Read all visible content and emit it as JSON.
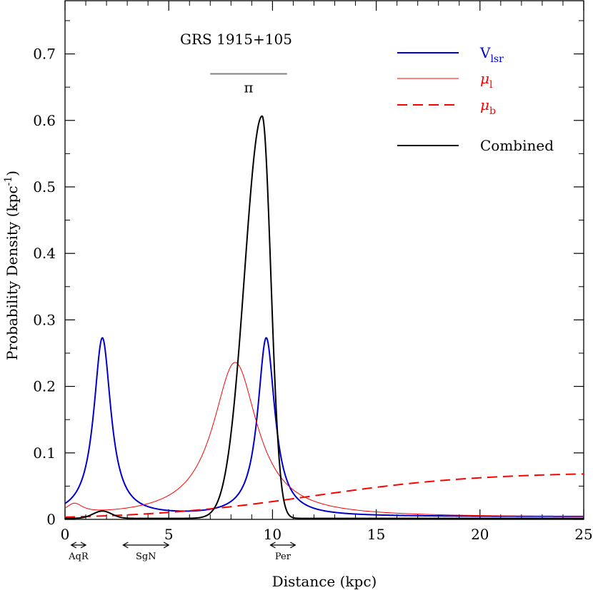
{
  "chart_data": {
    "type": "line",
    "title": "GRS 1915+105",
    "xlabel": "Distance (kpc)",
    "ylabel": "Probability Density (kpc",
    "ylabel_sup": "-1",
    "ylabel_close": ")",
    "xlim": [
      0,
      25
    ],
    "ylim": [
      0,
      0.78
    ],
    "xticks": [
      0,
      5,
      10,
      15,
      20,
      25
    ],
    "xtick_labels": [
      "0",
      "5",
      "10",
      "15",
      "20",
      "25"
    ],
    "yticks": [
      0,
      0.1,
      0.2,
      0.3,
      0.4,
      0.5,
      0.6,
      0.7
    ],
    "ytick_labels": [
      "0",
      "0.1",
      "0.2",
      "0.3",
      "0.4",
      "0.5",
      "0.6",
      "0.7"
    ],
    "parallax": {
      "label": "π",
      "x_range": [
        7.0,
        10.7
      ],
      "y": 0.67,
      "color": "#808080"
    },
    "series": [
      {
        "name": "V",
        "sub": "lsr",
        "key": "vlsr",
        "color": "#0000cc",
        "dash": "solid",
        "width": 2,
        "components": [
          {
            "center": 1.8,
            "width": 0.5,
            "amplitude": 0.268
          },
          {
            "center": 9.7,
            "width": 0.5,
            "amplitude": 0.268
          }
        ],
        "baseline": 0.004
      },
      {
        "name": "μ",
        "sub": "l",
        "key": "mul",
        "color": "#ff0000",
        "dash": "solid",
        "width": 1,
        "components": [
          {
            "center": 8.2,
            "width": 1.3,
            "amplitude": 0.233
          },
          {
            "center": 0.45,
            "width": 0.5,
            "amplitude": 0.015
          }
        ],
        "baseline": 0.003
      },
      {
        "name": "μ",
        "sub": "b",
        "key": "mub",
        "color": "#ff0000",
        "dash": "dashed",
        "width": 2,
        "logistic": {
          "max": 0.071,
          "midpoint": 12.0,
          "scale": 4.0
        },
        "points": [
          [
            0,
            0.003
          ],
          [
            2,
            0.006
          ],
          [
            4,
            0.012
          ],
          [
            6,
            0.019
          ],
          [
            8,
            0.026
          ],
          [
            10,
            0.034
          ],
          [
            12,
            0.042
          ],
          [
            14,
            0.05
          ],
          [
            16,
            0.057
          ],
          [
            18,
            0.062
          ],
          [
            20,
            0.066
          ],
          [
            22,
            0.068
          ],
          [
            25,
            0.069
          ]
        ]
      },
      {
        "name": "Combined",
        "sub": "",
        "key": "combined",
        "color": "#000000",
        "dash": "solid",
        "width": 2,
        "peaks": [
          {
            "center": 9.5,
            "amplitude": 0.605,
            "width_left": 0.85,
            "width_right": 0.42
          },
          {
            "center": 1.8,
            "amplitude": 0.011,
            "width_left": 0.45,
            "width_right": 0.45
          }
        ],
        "baseline": 0.0015
      }
    ],
    "regions": [
      {
        "label": "AqR",
        "range": [
          0.3,
          1.0
        ]
      },
      {
        "label": "SgN",
        "range": [
          2.8,
          5.0
        ]
      },
      {
        "label": "Per",
        "range": [
          9.9,
          11.1
        ]
      }
    ]
  }
}
